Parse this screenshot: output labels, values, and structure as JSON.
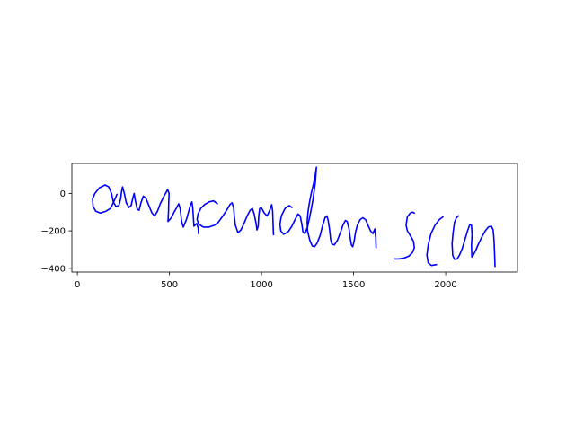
{
  "chart_data": {
    "type": "line",
    "title": "",
    "xlabel": "",
    "ylabel": "",
    "xlim": [
      -30,
      2390
    ],
    "ylim": [
      -420,
      160
    ],
    "xticks": [
      0,
      500,
      1000,
      1500,
      2000
    ],
    "yticks": [
      0,
      -200,
      -400
    ],
    "xtick_labels": [
      "0",
      "500",
      "1000",
      "1500",
      "2000"
    ],
    "ytick_labels": [
      "0",
      "−200",
      "−400"
    ],
    "grid": false,
    "legend": "none",
    "series": [
      {
        "color": "#0000ff",
        "strokes": [
          [
            [
              215,
              -5
            ],
            [
              200,
              -40
            ],
            [
              180,
              -80
            ],
            [
              155,
              -95
            ],
            [
              125,
              -105
            ],
            [
              100,
              -95
            ],
            [
              85,
              -70
            ],
            [
              82,
              -30
            ],
            [
              95,
              0
            ],
            [
              120,
              30
            ],
            [
              150,
              45
            ],
            [
              170,
              35
            ],
            [
              185,
              0
            ],
            [
              195,
              -45
            ],
            [
              210,
              -70
            ],
            [
              225,
              -65
            ],
            [
              235,
              -30
            ],
            [
              240,
              10
            ],
            [
              245,
              35
            ],
            [
              255,
              0
            ],
            [
              265,
              -50
            ],
            [
              280,
              -75
            ],
            [
              292,
              -65
            ],
            [
              300,
              -30
            ],
            [
              308,
              0
            ],
            [
              315,
              -40
            ],
            [
              325,
              -85
            ],
            [
              335,
              -90
            ],
            [
              345,
              -50
            ],
            [
              358,
              -15
            ],
            [
              372,
              -25
            ],
            [
              388,
              -65
            ],
            [
              405,
              -105
            ],
            [
              420,
              -120
            ],
            [
              435,
              -95
            ],
            [
              450,
              -55
            ],
            [
              470,
              -15
            ],
            [
              490,
              20
            ],
            [
              498,
              0
            ],
            [
              496,
              -50
            ],
            [
              495,
              -90
            ],
            [
              492,
              -150
            ],
            [
              510,
              -130
            ],
            [
              525,
              -100
            ],
            [
              540,
              -75
            ],
            [
              550,
              -55
            ],
            [
              558,
              -80
            ],
            [
              566,
              -150
            ],
            [
              575,
              -180
            ],
            [
              592,
              -140
            ],
            [
              605,
              -95
            ],
            [
              615,
              -60
            ],
            [
              622,
              -45
            ],
            [
              626,
              -75
            ],
            [
              630,
              -130
            ],
            [
              633,
              -175
            ],
            [
              648,
              -160
            ],
            [
              656,
              -185
            ],
            [
              658,
              -215
            ]
          ],
          [
            [
              760,
              -55
            ],
            [
              740,
              -40
            ],
            [
              715,
              -45
            ],
            [
              690,
              -60
            ],
            [
              670,
              -80
            ],
            [
              655,
              -110
            ],
            [
              650,
              -140
            ],
            [
              660,
              -165
            ],
            [
              685,
              -180
            ],
            [
              715,
              -180
            ],
            [
              745,
              -170
            ],
            [
              765,
              -155
            ],
            [
              790,
              -120
            ],
            [
              810,
              -90
            ],
            [
              828,
              -60
            ],
            [
              840,
              -50
            ],
            [
              848,
              -75
            ],
            [
              852,
              -120
            ],
            [
              858,
              -170
            ],
            [
              872,
              -210
            ],
            [
              888,
              -195
            ],
            [
              905,
              -160
            ],
            [
              922,
              -120
            ],
            [
              938,
              -90
            ],
            [
              950,
              -80
            ],
            [
              960,
              -110
            ],
            [
              970,
              -160
            ],
            [
              975,
              -195
            ],
            [
              982,
              -175
            ],
            [
              985,
              -120
            ],
            [
              990,
              -80
            ],
            [
              998,
              -75
            ],
            [
              1015,
              -105
            ],
            [
              1030,
              -120
            ],
            [
              1045,
              -90
            ],
            [
              1055,
              -60
            ],
            [
              1060,
              -90
            ],
            [
              1062,
              -140
            ],
            [
              1065,
              -220
            ]
          ],
          [
            [
              1165,
              -75
            ],
            [
              1150,
              -65
            ],
            [
              1128,
              -80
            ],
            [
              1108,
              -120
            ],
            [
              1100,
              -165
            ],
            [
              1105,
              -200
            ],
            [
              1120,
              -218
            ],
            [
              1145,
              -205
            ],
            [
              1165,
              -175
            ],
            [
              1182,
              -140
            ],
            [
              1198,
              -110
            ],
            [
              1210,
              -120
            ],
            [
              1218,
              -160
            ],
            [
              1225,
              -205
            ],
            [
              1235,
              -215
            ],
            [
              1250,
              -180
            ],
            [
              1265,
              -110
            ],
            [
              1280,
              -30
            ],
            [
              1292,
              60
            ],
            [
              1298,
              140
            ],
            [
              1292,
              100
            ],
            [
              1282,
              50
            ],
            [
              1270,
              0
            ],
            [
              1260,
              -50
            ],
            [
              1252,
              -100
            ],
            [
              1248,
              -150
            ],
            [
              1250,
              -200
            ],
            [
              1262,
              -250
            ],
            [
              1275,
              -280
            ],
            [
              1288,
              -285
            ],
            [
              1302,
              -265
            ],
            [
              1318,
              -225
            ],
            [
              1332,
              -170
            ],
            [
              1345,
              -130
            ],
            [
              1355,
              -120
            ],
            [
              1362,
              -145
            ],
            [
              1370,
              -195
            ],
            [
              1375,
              -245
            ],
            [
              1382,
              -270
            ],
            [
              1395,
              -275
            ],
            [
              1412,
              -250
            ],
            [
              1428,
              -210
            ],
            [
              1442,
              -170
            ],
            [
              1455,
              -145
            ],
            [
              1465,
              -150
            ],
            [
              1475,
              -190
            ],
            [
              1482,
              -240
            ],
            [
              1488,
              -275
            ],
            [
              1495,
              -285
            ],
            [
              1503,
              -255
            ],
            [
              1510,
              -210
            ],
            [
              1520,
              -170
            ],
            [
              1535,
              -140
            ],
            [
              1550,
              -130
            ],
            [
              1565,
              -140
            ],
            [
              1578,
              -170
            ],
            [
              1592,
              -200
            ],
            [
              1605,
              -215
            ],
            [
              1615,
              -190
            ],
            [
              1620,
              -235
            ],
            [
              1622,
              -290
            ]
          ],
          [
            [
              1720,
              -350
            ],
            [
              1745,
              -350
            ],
            [
              1775,
              -345
            ],
            [
              1800,
              -335
            ],
            [
              1820,
              -315
            ],
            [
              1830,
              -290
            ],
            [
              1825,
              -255
            ],
            [
              1808,
              -225
            ],
            [
              1792,
              -200
            ],
            [
              1785,
              -170
            ],
            [
              1792,
              -125
            ],
            [
              1808,
              -105
            ],
            [
              1820,
              -100
            ],
            [
              1830,
              -105
            ]
          ],
          [
            [
              1985,
              -125
            ],
            [
              1965,
              -140
            ],
            [
              1942,
              -170
            ],
            [
              1920,
              -215
            ],
            [
              1905,
              -275
            ],
            [
              1898,
              -330
            ],
            [
              1905,
              -370
            ],
            [
              1922,
              -385
            ],
            [
              1950,
              -380
            ]
          ],
          [
            [
              2070,
              -120
            ],
            [
              2058,
              -130
            ],
            [
              2048,
              -155
            ],
            [
              2040,
              -210
            ],
            [
              2035,
              -270
            ],
            [
              2038,
              -330
            ],
            [
              2048,
              -352
            ],
            [
              2062,
              -350
            ],
            [
              2075,
              -330
            ],
            [
              2090,
              -295
            ],
            [
              2105,
              -245
            ],
            [
              2120,
              -195
            ],
            [
              2132,
              -165
            ],
            [
              2140,
              -170
            ],
            [
              2143,
              -220
            ],
            [
              2140,
              -280
            ],
            [
              2142,
              -340
            ],
            [
              2150,
              -330
            ],
            [
              2165,
              -300
            ],
            [
              2180,
              -265
            ],
            [
              2198,
              -230
            ],
            [
              2215,
              -200
            ],
            [
              2232,
              -180
            ],
            [
              2248,
              -175
            ],
            [
              2258,
              -195
            ],
            [
              2262,
              -245
            ],
            [
              2265,
              -310
            ],
            [
              2268,
              -390
            ]
          ]
        ]
      }
    ]
  }
}
